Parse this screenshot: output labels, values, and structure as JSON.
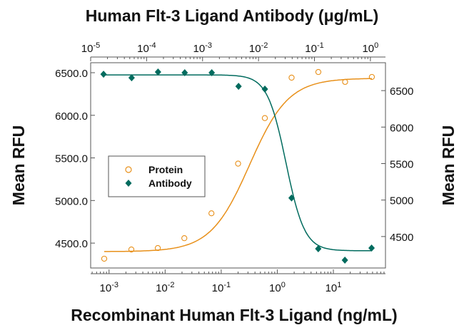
{
  "chart_data": {
    "type": "scatter",
    "top_title": "Human Flt-3 Ligand Antibody (μg/mL)",
    "xlabel": "Recombinant Human Flt-3 Ligand (ng/mL)",
    "ylabel_left": "Mean RFU",
    "ylabel_right": "Mean RFU",
    "x_bottom": {
      "scale": "log",
      "range": [
        0.00047,
        85
      ],
      "ticks": [
        "-3",
        "-2",
        "-1",
        "0",
        "1"
      ]
    },
    "x_top": {
      "scale": "log",
      "range": [
        1e-05,
        1.86
      ],
      "ticks": [
        "-5",
        "-4",
        "-3",
        "-2",
        "-1",
        "0"
      ]
    },
    "y_left": {
      "range": [
        4208,
        6617
      ],
      "ticks": [
        "4500.0",
        "5000.0",
        "5500.0",
        "6000.0",
        "6500.0"
      ]
    },
    "y_right": {
      "range": [
        4069,
        6882
      ],
      "ticks": [
        "4500",
        "5000",
        "5500",
        "6000",
        "6500"
      ]
    },
    "grid": false,
    "legend": {
      "placement": "center-left",
      "entries": [
        "Protein",
        "Antibody"
      ]
    },
    "colors": {
      "protein": "#E8901A",
      "antibody": "#006B5E"
    },
    "series": [
      {
        "name": "Protein",
        "axis": "bottom-left",
        "marker": "open-circle",
        "x": [
          0.00082,
          0.0025,
          0.0074,
          0.022,
          0.067,
          0.2,
          0.6,
          1.8,
          5.4,
          16.2,
          48.6
        ],
        "y": [
          4317,
          4425,
          4442,
          4558,
          4850,
          5433,
          5967,
          6442,
          6508,
          6392,
          6450
        ],
        "fit": {
          "bottom": 4400,
          "top": 6435,
          "ec50": 0.32,
          "hill": 1.25
        }
      },
      {
        "name": "Antibody",
        "axis": "top-right",
        "marker": "filled-diamond",
        "x": [
          1.7e-05,
          5.4e-05,
          0.00016,
          0.00048,
          0.00146,
          0.0044,
          0.013,
          0.039,
          0.117,
          0.35,
          1.05
        ],
        "y": [
          6725,
          6676,
          6755,
          6745,
          6745,
          6559,
          6520,
          5029,
          4333,
          4176,
          4343
        ],
        "fit": {
          "bottom": 4305,
          "top": 6715,
          "ec50": 0.031,
          "hill": -2.6
        }
      }
    ]
  }
}
